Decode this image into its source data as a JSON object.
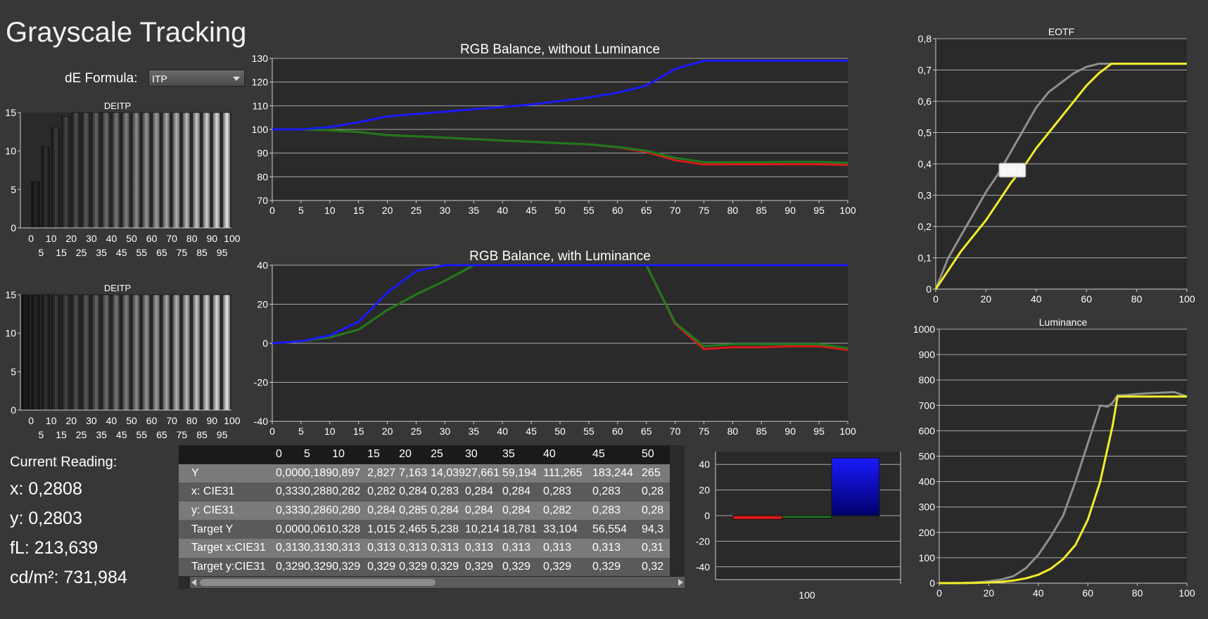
{
  "app": {
    "title": "Grayscale Tracking",
    "de_formula_label": "dE Formula:",
    "de_formula_value": "ITP"
  },
  "colors": {
    "red": "#d81a1a",
    "green": "#1e7a1e",
    "blue": "#1a1aff",
    "yellow": "#f2ee2a",
    "gray": "#8e8e8e"
  },
  "chart_data": [
    {
      "id": "deitp_top",
      "type": "bar",
      "title": "DEITP",
      "categories": [
        0,
        5,
        10,
        15,
        20,
        25,
        30,
        35,
        40,
        45,
        50,
        55,
        60,
        65,
        70,
        75,
        80,
        85,
        90,
        95,
        100
      ],
      "values": [
        0,
        6,
        10.5,
        13,
        14.5,
        15,
        15,
        15,
        15,
        15,
        15,
        15,
        15,
        15,
        15,
        15,
        15,
        15,
        15,
        15,
        15
      ],
      "ylim": [
        0,
        15
      ],
      "yticks": [
        0,
        5,
        10,
        15
      ],
      "xticks_top": [
        "0",
        "10",
        "20",
        "30",
        "40",
        "50",
        "60",
        "70",
        "80",
        "90",
        "100"
      ],
      "xticks_bottom": [
        "5",
        "15",
        "25",
        "35",
        "45",
        "55",
        "65",
        "75",
        "85",
        "95"
      ]
    },
    {
      "id": "deitp_bottom",
      "type": "bar",
      "title": "DEITP",
      "categories": [
        0,
        5,
        10,
        15,
        20,
        25,
        30,
        35,
        40,
        45,
        50,
        55,
        60,
        65,
        70,
        75,
        80,
        85,
        90,
        95,
        100
      ],
      "values": [
        15,
        15,
        15,
        15,
        15,
        15,
        15,
        15,
        15,
        15,
        15,
        15,
        15,
        15,
        15,
        15,
        15,
        15,
        15,
        15,
        15
      ],
      "ylim": [
        0,
        15
      ],
      "yticks": [
        0,
        5,
        10,
        15
      ],
      "xticks_top": [
        "0",
        "10",
        "20",
        "30",
        "40",
        "50",
        "60",
        "70",
        "80",
        "90",
        "100"
      ],
      "xticks_bottom": [
        "5",
        "15",
        "25",
        "35",
        "45",
        "55",
        "65",
        "75",
        "85",
        "95"
      ]
    },
    {
      "id": "rgb_without",
      "type": "line",
      "title": "RGB Balance, without Luminance",
      "x": [
        0,
        5,
        10,
        15,
        20,
        25,
        30,
        35,
        40,
        45,
        50,
        55,
        60,
        65,
        70,
        75,
        80,
        85,
        90,
        95,
        100
      ],
      "xlim": [
        0,
        100
      ],
      "ylim": [
        70,
        130
      ],
      "yticks": [
        "70",
        "80",
        "90",
        "100",
        "110",
        "120",
        "130"
      ],
      "xticks": [
        "0",
        "5",
        "10",
        "15",
        "20",
        "25",
        "30",
        "35",
        "40",
        "45",
        "50",
        "55",
        "60",
        "65",
        "70",
        "75",
        "80",
        "85",
        "90",
        "95",
        "100"
      ],
      "series": [
        {
          "color": "#d81a1a",
          "values": [
            100,
            100,
            99.6,
            98.9,
            97.6,
            97.1,
            96.5,
            95.9,
            95.3,
            94.8,
            94.2,
            93.7,
            92.5,
            90.5,
            87,
            85.2,
            85.3,
            85.3,
            85.3,
            85.3,
            85
          ]
        },
        {
          "color": "#1e7a1e",
          "values": [
            100,
            100,
            99.6,
            98.9,
            97.6,
            97.1,
            96.5,
            95.9,
            95.3,
            94.8,
            94.2,
            93.7,
            92.6,
            91,
            88,
            86.2,
            86.2,
            86.2,
            86.3,
            86.3,
            85.9
          ]
        },
        {
          "color": "#1a1aff",
          "values": [
            100,
            100,
            101,
            103,
            105.5,
            106.5,
            107.5,
            108.5,
            109.5,
            110.5,
            112,
            113.5,
            115.5,
            118.5,
            125.5,
            129,
            129,
            129,
            129,
            129,
            129
          ]
        }
      ]
    },
    {
      "id": "rgb_with",
      "type": "line",
      "title": "RGB Balance, with Luminance",
      "x": [
        0,
        5,
        10,
        15,
        20,
        25,
        30,
        35,
        40,
        45,
        50,
        55,
        60,
        65,
        70,
        75,
        80,
        85,
        90,
        95,
        100
      ],
      "xlim": [
        0,
        100
      ],
      "ylim": [
        -40,
        40
      ],
      "yticks": [
        "-40",
        "-20",
        "0",
        "20",
        "40"
      ],
      "xticks": [
        "0",
        "5",
        "10",
        "15",
        "20",
        "25",
        "30",
        "35",
        "40",
        "45",
        "50",
        "55",
        "60",
        "65",
        "70",
        "75",
        "80",
        "85",
        "90",
        "95",
        "100"
      ],
      "series": [
        {
          "color": "#d81a1a",
          "values": [
            0,
            1,
            3,
            7,
            17,
            25,
            32,
            40,
            40,
            40,
            40,
            40,
            40,
            40,
            10,
            -3,
            -2,
            -2,
            -1.5,
            -1.5,
            -3.5
          ]
        },
        {
          "color": "#1e7a1e",
          "values": [
            0,
            1,
            3,
            7,
            17,
            25,
            32,
            40,
            40,
            40,
            40,
            40,
            40,
            40,
            10.5,
            -1.5,
            -0.5,
            -0.5,
            -0.5,
            -0.5,
            -2.5
          ]
        },
        {
          "color": "#1a1aff",
          "values": [
            0,
            1,
            4,
            11,
            26,
            37,
            40,
            40,
            40,
            40,
            40,
            40,
            40,
            40,
            40,
            40,
            40,
            40,
            40,
            40,
            40
          ]
        }
      ]
    },
    {
      "id": "eotf",
      "type": "line",
      "title": "EOTF",
      "xlim": [
        0,
        100
      ],
      "ylim": [
        0,
        0.8
      ],
      "yticks": [
        "0",
        "0,1",
        "0,2",
        "0,3",
        "0,4",
        "0,5",
        "0,6",
        "0,7",
        "0,8"
      ],
      "xticks": [
        "0",
        "20",
        "40",
        "60",
        "80",
        "100"
      ],
      "tooltip": "EOTF",
      "series": [
        {
          "color": "#8e8e8e",
          "x": [
            0,
            5,
            10,
            15,
            20,
            25,
            30,
            35,
            40,
            45,
            50,
            55,
            60,
            65,
            70,
            75,
            80,
            85,
            90,
            95,
            100
          ],
          "values": [
            0,
            0.1,
            0.17,
            0.24,
            0.31,
            0.37,
            0.44,
            0.51,
            0.58,
            0.63,
            0.66,
            0.69,
            0.71,
            0.72,
            0.72,
            0.72,
            0.72,
            0.72,
            0.72,
            0.72,
            0.72
          ]
        },
        {
          "color": "#f2ee2a",
          "x": [
            0,
            5,
            10,
            15,
            20,
            25,
            30,
            35,
            40,
            45,
            50,
            55,
            60,
            65,
            70,
            72,
            75,
            80,
            85,
            90,
            95,
            100
          ],
          "values": [
            0,
            0.06,
            0.12,
            0.17,
            0.22,
            0.28,
            0.34,
            0.39,
            0.45,
            0.5,
            0.55,
            0.6,
            0.65,
            0.69,
            0.72,
            0.72,
            0.72,
            0.72,
            0.72,
            0.72,
            0.72,
            0.72
          ]
        }
      ]
    },
    {
      "id": "luminance",
      "type": "line",
      "title": "Luminance",
      "xlim": [
        0,
        100
      ],
      "ylim": [
        0,
        1000
      ],
      "yticks": [
        "0",
        "100",
        "200",
        "300",
        "400",
        "500",
        "600",
        "700",
        "800",
        "900",
        "1000"
      ],
      "xticks": [
        "0",
        "20",
        "40",
        "60",
        "80",
        "100"
      ],
      "series": [
        {
          "color": "#8e8e8e",
          "x": [
            0,
            5,
            10,
            15,
            20,
            25,
            30,
            35,
            40,
            45,
            50,
            55,
            60,
            65,
            68,
            70,
            72,
            75,
            80,
            85,
            90,
            95,
            100
          ],
          "values": [
            0,
            0.2,
            0.9,
            2.8,
            7.2,
            14,
            27.7,
            59.2,
            111.3,
            183.2,
            265,
            400,
            550,
            700,
            695,
            710,
            740,
            740,
            745,
            748,
            750,
            752,
            735
          ]
        },
        {
          "color": "#f2ee2a",
          "x": [
            0,
            5,
            10,
            15,
            20,
            25,
            30,
            35,
            40,
            45,
            50,
            55,
            60,
            65,
            70,
            72,
            75,
            80,
            85,
            90,
            95,
            100
          ],
          "values": [
            0,
            0.1,
            0.3,
            1,
            2.5,
            5.2,
            10.2,
            18.8,
            33.1,
            56.6,
            94.3,
            150,
            250,
            400,
            620,
            735,
            735,
            735,
            735,
            735,
            735,
            735
          ]
        }
      ]
    },
    {
      "id": "rgb_bars",
      "type": "bar",
      "title": "",
      "categories": [
        "100"
      ],
      "ylim": [
        -50,
        50
      ],
      "yticks": [
        "-40",
        "-20",
        "0",
        "20",
        "40"
      ],
      "series": [
        {
          "color": "#d81a1a",
          "values": [
            -3
          ]
        },
        {
          "color": "#1e7a1e",
          "values": [
            -2
          ]
        },
        {
          "color": "#1a1aff",
          "values": [
            45
          ]
        }
      ]
    },
    {
      "id": "readings_table",
      "type": "table",
      "columns": [
        "0",
        "5",
        "10",
        "15",
        "20",
        "25",
        "30",
        "35",
        "40",
        "45",
        "50"
      ],
      "rows": [
        {
          "label": "Y",
          "values": [
            "0,000",
            "0,189",
            "0,897",
            "2,827",
            "7,163",
            "14,039",
            "27,661",
            "59,194",
            "111,265",
            "183,244",
            "265"
          ]
        },
        {
          "label": "x: CIE31",
          "values": [
            "0,333",
            "0,288",
            "0,282",
            "0,282",
            "0,284",
            "0,283",
            "0,284",
            "0,284",
            "0,283",
            "0,283",
            "0,28"
          ]
        },
        {
          "label": "y: CIE31",
          "values": [
            "0,333",
            "0,286",
            "0,280",
            "0,284",
            "0,285",
            "0,284",
            "0,284",
            "0,284",
            "0,282",
            "0,283",
            "0,28"
          ]
        },
        {
          "label": "Target Y",
          "values": [
            "0,000",
            "0,061",
            "0,328",
            "1,015",
            "2,465",
            "5,238",
            "10,214",
            "18,781",
            "33,104",
            "56,554",
            "94,3"
          ]
        },
        {
          "label": "Target x:CIE31",
          "values": [
            "0,313",
            "0,313",
            "0,313",
            "0,313",
            "0,313",
            "0,313",
            "0,313",
            "0,313",
            "0,313",
            "0,313",
            "0,31"
          ]
        },
        {
          "label": "Target y:CIE31",
          "values": [
            "0,329",
            "0,329",
            "0,329",
            "0,329",
            "0,329",
            "0,329",
            "0,329",
            "0,329",
            "0,329",
            "0,329",
            "0,32"
          ]
        }
      ]
    }
  ],
  "reading": {
    "header": "Current Reading:",
    "x": "x: 0,2808",
    "y": "y: 0,2803",
    "fl": "fL: 213,639",
    "cdm2": "cd/m²: 731,984"
  }
}
